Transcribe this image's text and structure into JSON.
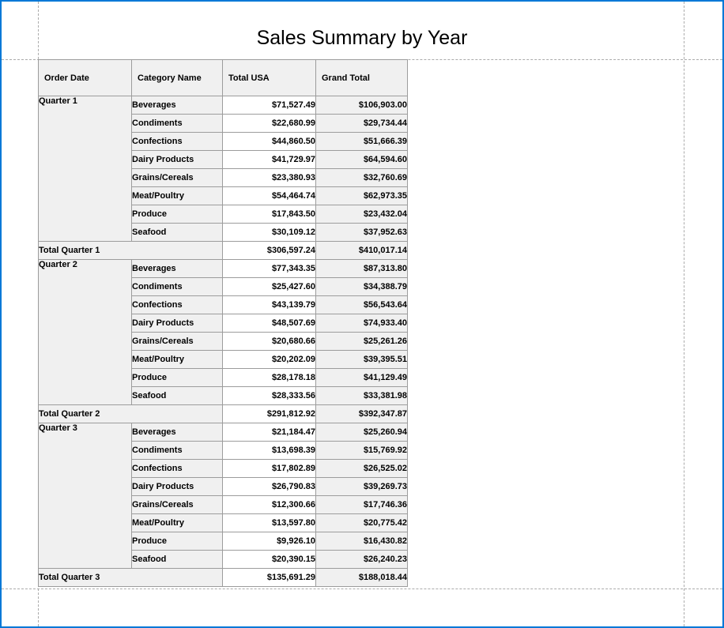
{
  "window": {
    "accent_border_color": "#0078D7"
  },
  "report": {
    "title": "Sales Summary by Year",
    "colors": {
      "cell_shade": "#f0f0f0",
      "cell_border": "#9c9c9c",
      "margin_guide": "#ababab"
    },
    "table": {
      "columns": [
        "Order Date",
        "Category Name",
        "Total USA",
        "Grand Total"
      ],
      "groups": [
        {
          "name": "Quarter 1",
          "rows": [
            {
              "category": "Beverages",
              "total_usa": "$71,527.49",
              "grand_total": "$106,903.00"
            },
            {
              "category": "Condiments",
              "total_usa": "$22,680.99",
              "grand_total": "$29,734.44"
            },
            {
              "category": "Confections",
              "total_usa": "$44,860.50",
              "grand_total": "$51,666.39"
            },
            {
              "category": "Dairy Products",
              "total_usa": "$41,729.97",
              "grand_total": "$64,594.60"
            },
            {
              "category": "Grains/Cereals",
              "total_usa": "$23,380.93",
              "grand_total": "$32,760.69"
            },
            {
              "category": "Meat/Poultry",
              "total_usa": "$54,464.74",
              "grand_total": "$62,973.35"
            },
            {
              "category": "Produce",
              "total_usa": "$17,843.50",
              "grand_total": "$23,432.04"
            },
            {
              "category": "Seafood",
              "total_usa": "$30,109.12",
              "grand_total": "$37,952.63"
            }
          ],
          "total_label": "Total Quarter 1",
          "total_usa": "$306,597.24",
          "grand_total": "$410,017.14"
        },
        {
          "name": "Quarter 2",
          "rows": [
            {
              "category": "Beverages",
              "total_usa": "$77,343.35",
              "grand_total": "$87,313.80"
            },
            {
              "category": "Condiments",
              "total_usa": "$25,427.60",
              "grand_total": "$34,388.79"
            },
            {
              "category": "Confections",
              "total_usa": "$43,139.79",
              "grand_total": "$56,543.64"
            },
            {
              "category": "Dairy Products",
              "total_usa": "$48,507.69",
              "grand_total": "$74,933.40"
            },
            {
              "category": "Grains/Cereals",
              "total_usa": "$20,680.66",
              "grand_total": "$25,261.26"
            },
            {
              "category": "Meat/Poultry",
              "total_usa": "$20,202.09",
              "grand_total": "$39,395.51"
            },
            {
              "category": "Produce",
              "total_usa": "$28,178.18",
              "grand_total": "$41,129.49"
            },
            {
              "category": "Seafood",
              "total_usa": "$28,333.56",
              "grand_total": "$33,381.98"
            }
          ],
          "total_label": "Total Quarter 2",
          "total_usa": "$291,812.92",
          "grand_total": "$392,347.87"
        },
        {
          "name": "Quarter 3",
          "rows": [
            {
              "category": "Beverages",
              "total_usa": "$21,184.47",
              "grand_total": "$25,260.94"
            },
            {
              "category": "Condiments",
              "total_usa": "$13,698.39",
              "grand_total": "$15,769.92"
            },
            {
              "category": "Confections",
              "total_usa": "$17,802.89",
              "grand_total": "$26,525.02"
            },
            {
              "category": "Dairy Products",
              "total_usa": "$26,790.83",
              "grand_total": "$39,269.73"
            },
            {
              "category": "Grains/Cereals",
              "total_usa": "$12,300.66",
              "grand_total": "$17,746.36"
            },
            {
              "category": "Meat/Poultry",
              "total_usa": "$13,597.80",
              "grand_total": "$20,775.42"
            },
            {
              "category": "Produce",
              "total_usa": "$9,926.10",
              "grand_total": "$16,430.82"
            },
            {
              "category": "Seafood",
              "total_usa": "$20,390.15",
              "grand_total": "$26,240.23"
            }
          ],
          "total_label": "Total Quarter 3",
          "total_usa": "$135,691.29",
          "grand_total": "$188,018.44"
        }
      ]
    }
  }
}
